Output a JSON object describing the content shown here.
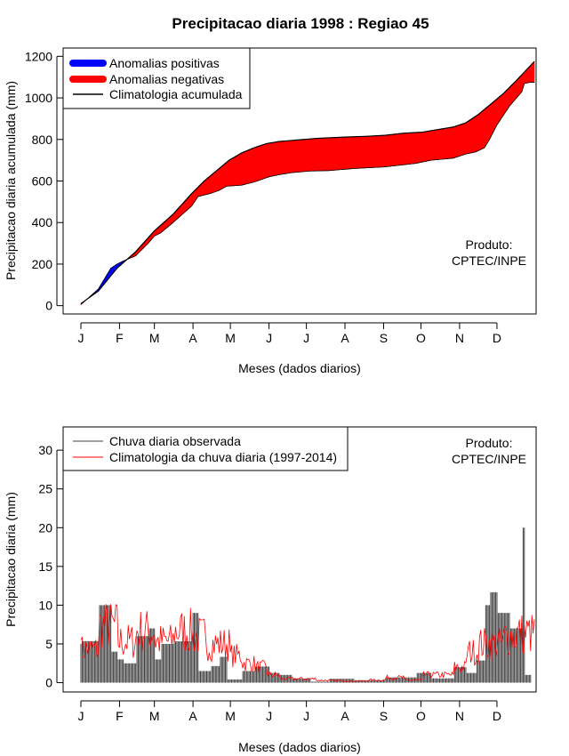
{
  "title": "Precipitacao diaria 1998 : Regiao 45",
  "chart_data": [
    {
      "type": "area",
      "ylabel": "Precipitacao diaria acumulada (mm)",
      "xlabel": "Meses (dados diarios)",
      "x_tick_labels": [
        "J",
        "F",
        "M",
        "A",
        "M",
        "J",
        "J",
        "A",
        "S",
        "O",
        "N",
        "D"
      ],
      "y_ticks": [
        0,
        200,
        400,
        600,
        800,
        1000,
        1200
      ],
      "ylim": [
        -40,
        1240
      ],
      "xlim": [
        1,
        365
      ],
      "legend": [
        "Anomalias positivas",
        "Anomalias negativas",
        "Climatologia acumulada"
      ],
      "annotation": [
        "Produto:",
        "CPTEC/INPE"
      ],
      "climatology_cumulative": {
        "day": [
          1,
          15,
          30,
          45,
          60,
          75,
          90,
          100,
          110,
          120,
          130,
          140,
          150,
          160,
          170,
          180,
          190,
          200,
          215,
          230,
          245,
          260,
          275,
          290,
          300,
          310,
          320,
          330,
          340,
          350,
          365
        ],
        "value": [
          10,
          70,
          180,
          260,
          360,
          440,
          540,
          600,
          650,
          700,
          735,
          760,
          780,
          790,
          795,
          800,
          805,
          808,
          812,
          815,
          820,
          830,
          835,
          850,
          860,
          880,
          920,
          970,
          1020,
          1080,
          1175
        ]
      },
      "observed_cumulative": {
        "day": [
          1,
          15,
          20,
          25,
          30,
          35,
          45,
          55,
          60,
          65,
          75,
          90,
          95,
          105,
          112,
          118,
          130,
          140,
          152,
          160,
          170,
          185,
          200,
          220,
          245,
          270,
          282,
          300,
          310,
          318,
          325,
          329,
          335,
          345,
          355,
          357,
          362,
          365
        ],
        "value": [
          5,
          80,
          130,
          180,
          200,
          215,
          240,
          300,
          335,
          350,
          400,
          480,
          525,
          540,
          555,
          575,
          580,
          595,
          620,
          630,
          640,
          648,
          650,
          660,
          668,
          685,
          700,
          710,
          730,
          740,
          760,
          800,
          870,
          960,
          1030,
          1070,
          1075,
          1075
        ]
      },
      "colors": {
        "positive": "#0000ff",
        "negative": "#ff0000",
        "climatology": "#000000"
      }
    },
    {
      "type": "bar",
      "ylabel": "Precipitacao diaria (mm)",
      "xlabel": "Meses (dados diarios)",
      "x_tick_labels": [
        "J",
        "F",
        "M",
        "A",
        "M",
        "J",
        "J",
        "A",
        "S",
        "O",
        "N",
        "D"
      ],
      "y_ticks": [
        0,
        5,
        10,
        15,
        20,
        25,
        30
      ],
      "ylim": [
        -1.2,
        33
      ],
      "xlim": [
        1,
        365
      ],
      "legend": [
        "Chuva diaria observada",
        "Climatologia da chuva diaria (1997-2014)"
      ],
      "annotation": [
        "Produto:",
        "CPTEC/INPE"
      ],
      "colors": {
        "observed": "#404040",
        "climatology": "#ff0000"
      }
    }
  ]
}
